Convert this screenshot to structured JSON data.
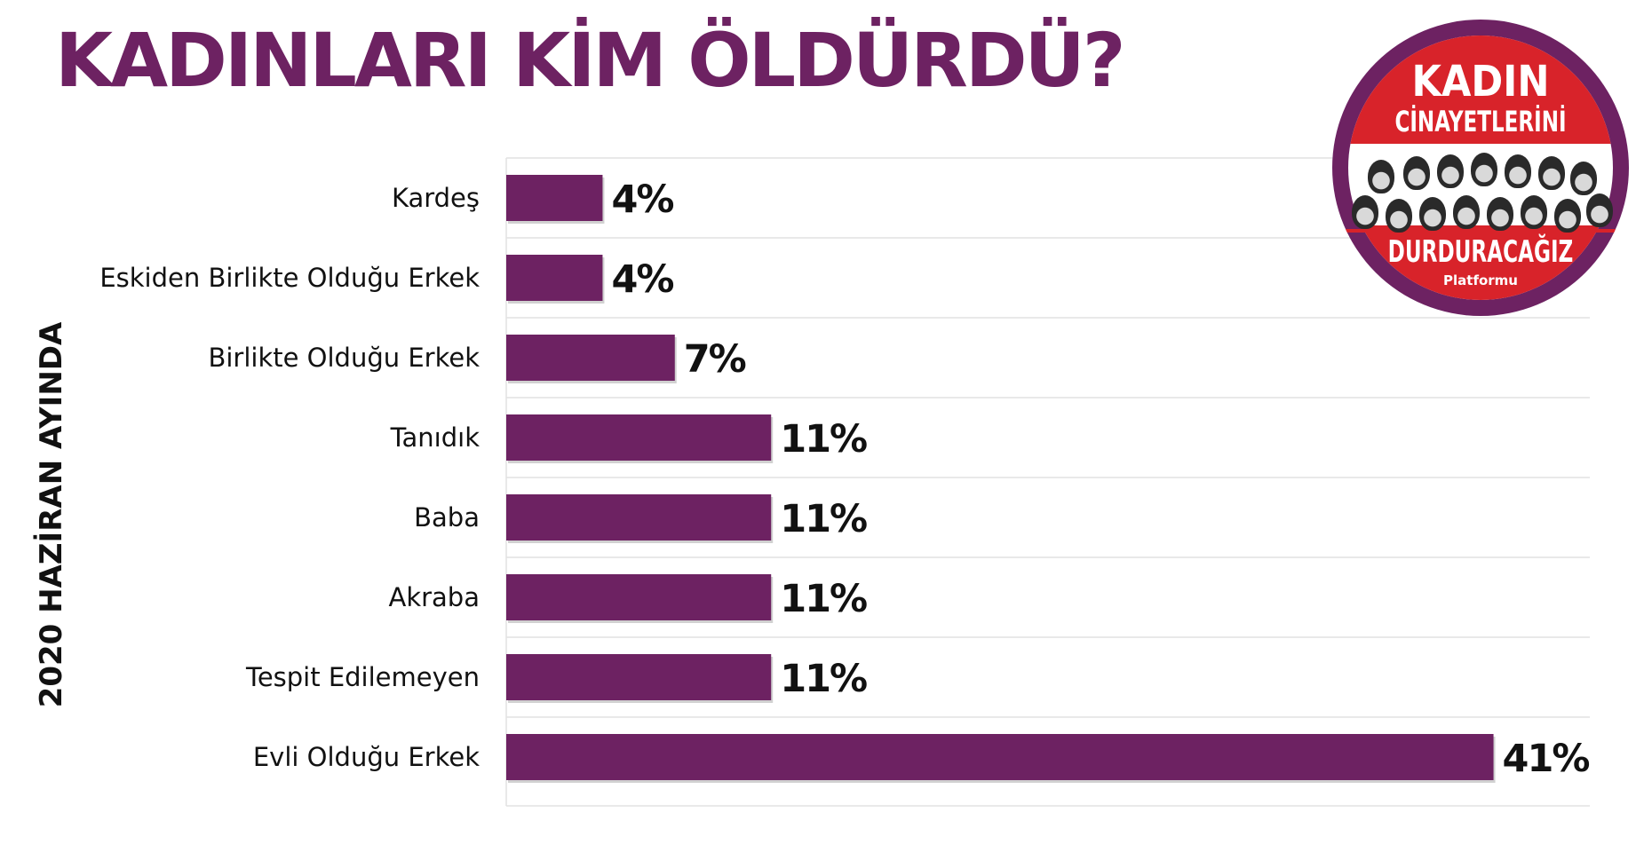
{
  "title": "KADINLARI KİM ÖLDÜRDÜ?",
  "side_label": "2020 HAZİRAN AYINDA",
  "logo": {
    "line1": "KADIN",
    "line2": "CİNAYETLERİNİ",
    "line3": "DURDURACAĞIZ",
    "line4": "Platformu"
  },
  "colors": {
    "bar": "#6d2262",
    "title": "#6d2262",
    "logo_red": "#d8232a",
    "grid": "#e2e2e2"
  },
  "chart_data": {
    "type": "bar",
    "orientation": "horizontal",
    "title": "KADINLARI KİM ÖLDÜRDÜ?",
    "ylabel": "2020 HAZİRAN AYINDA",
    "xlabel": "",
    "categories": [
      "Kardeş",
      "Eskiden Birlikte Olduğu Erkek",
      "Birlikte Olduğu Erkek",
      "Tanıdık",
      "Baba",
      "Akraba",
      "Tespit Edilemeyen",
      "Evli Olduğu Erkek"
    ],
    "values": [
      4,
      4,
      7,
      11,
      11,
      11,
      11,
      41
    ],
    "value_labels": [
      "4%",
      "4%",
      "7%",
      "11%",
      "11%",
      "11%",
      "11%",
      "41%"
    ],
    "xlim": [
      0,
      45
    ],
    "grid": true,
    "legend": "none"
  }
}
